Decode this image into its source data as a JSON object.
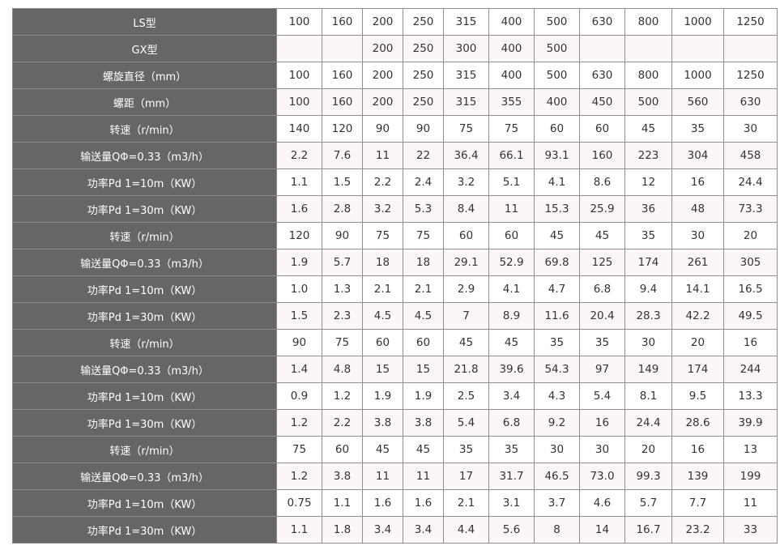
{
  "colors": {
    "header_bg": "#666666",
    "alt_row_bg": "#fdf6f6",
    "border": "#8f8f8f"
  },
  "table": {
    "rows": [
      {
        "label": "LS型",
        "values": [
          "100",
          "160",
          "200",
          "250",
          "315",
          "400",
          "500",
          "630",
          "800",
          "1000",
          "1250"
        ]
      },
      {
        "label": "GX型",
        "values": [
          "",
          "",
          "200",
          "250",
          "300",
          "400",
          "500",
          "",
          "",
          "",
          ""
        ]
      },
      {
        "label": "螺旋直径（mm）",
        "values": [
          "100",
          "160",
          "200",
          "250",
          "315",
          "400",
          "500",
          "630",
          "800",
          "1000",
          "1250"
        ]
      },
      {
        "label": "螺距（mm）",
        "values": [
          "100",
          "160",
          "200",
          "250",
          "315",
          "355",
          "400",
          "450",
          "500",
          "560",
          "630"
        ]
      },
      {
        "label": "转速（r/min）",
        "values": [
          "140",
          "120",
          "90",
          "90",
          "75",
          "75",
          "60",
          "60",
          "45",
          "35",
          "30"
        ]
      },
      {
        "label": "输送量QΦ=0.33（m3/h）",
        "values": [
          "2.2",
          "7.6",
          "11",
          "22",
          "36.4",
          "66.1",
          "93.1",
          "160",
          "223",
          "304",
          "458"
        ]
      },
      {
        "label": "功率Pd 1=10m（KW）",
        "values": [
          "1.1",
          "1.5",
          "2.2",
          "2.4",
          "3.2",
          "5.1",
          "4.1",
          "8.6",
          "12",
          "16",
          "24.4"
        ]
      },
      {
        "label": "功率Pd 1=30m（KW）",
        "values": [
          "1.6",
          "2.8",
          "3.2",
          "5.3",
          "8.4",
          "11",
          "15.3",
          "25.9",
          "36",
          "48",
          "73.3"
        ]
      },
      {
        "label": "转速（r/min）",
        "values": [
          "120",
          "90",
          "75",
          "75",
          "60",
          "60",
          "45",
          "45",
          "35",
          "30",
          "20"
        ]
      },
      {
        "label": "输送量QΦ=0.33（m3/h）",
        "values": [
          "1.9",
          "5.7",
          "18",
          "18",
          "29.1",
          "52.9",
          "69.8",
          "125",
          "174",
          "261",
          "305"
        ]
      },
      {
        "label": "功率Pd 1=10m（KW）",
        "values": [
          "1.0",
          "1.3",
          "2.1",
          "2.1",
          "2.9",
          "4.1",
          "4.7",
          "6.8",
          "9.4",
          "14.1",
          "16.5"
        ]
      },
      {
        "label": "功率Pd 1=30m（KW）",
        "values": [
          "1.5",
          "2.3",
          "4.5",
          "4.5",
          "7",
          "8.9",
          "11.6",
          "20.4",
          "28.3",
          "42.2",
          "49.5"
        ]
      },
      {
        "label": "转速（r/min）",
        "values": [
          "90",
          "75",
          "60",
          "60",
          "45",
          "45",
          "35",
          "35",
          "30",
          "20",
          "16"
        ]
      },
      {
        "label": "输送量QΦ=0.33（m3/h）",
        "values": [
          "1.4",
          "4.8",
          "15",
          "15",
          "21.8",
          "39.6",
          "54.3",
          "97",
          "149",
          "174",
          "244"
        ]
      },
      {
        "label": "功率Pd 1=10m（KW）",
        "values": [
          "0.9",
          "1.2",
          "1.9",
          "1.9",
          "2.5",
          "3.4",
          "4.3",
          "5.4",
          "8.1",
          "9.5",
          "13.3"
        ]
      },
      {
        "label": "功率Pd 1=30m（KW）",
        "values": [
          "1.2",
          "2.2",
          "3.8",
          "3.8",
          "5.4",
          "6.8",
          "9.2",
          "16",
          "24.4",
          "28.6",
          "39.9"
        ]
      },
      {
        "label": "转速（r/min）",
        "values": [
          "75",
          "60",
          "45",
          "45",
          "35",
          "35",
          "30",
          "30",
          "20",
          "16",
          "13"
        ]
      },
      {
        "label": "输送量QΦ=0.33（m3/h）",
        "values": [
          "1.2",
          "3.8",
          "11",
          "11",
          "17",
          "31.7",
          "46.5",
          "73.0",
          "99.3",
          "139",
          "199"
        ]
      },
      {
        "label": "功率Pd 1=10m（KW）",
        "values": [
          "0.75",
          "1.1",
          "1.6",
          "1.6",
          "2.1",
          "3.1",
          "3.7",
          "4.6",
          "5.7",
          "7.7",
          "11"
        ]
      },
      {
        "label": "功率Pd 1=30m（KW）",
        "values": [
          "1.1",
          "1.8",
          "3.4",
          "3.4",
          "4.4",
          "5.6",
          "8",
          "14",
          "16.7",
          "23.2",
          "33"
        ]
      }
    ]
  }
}
